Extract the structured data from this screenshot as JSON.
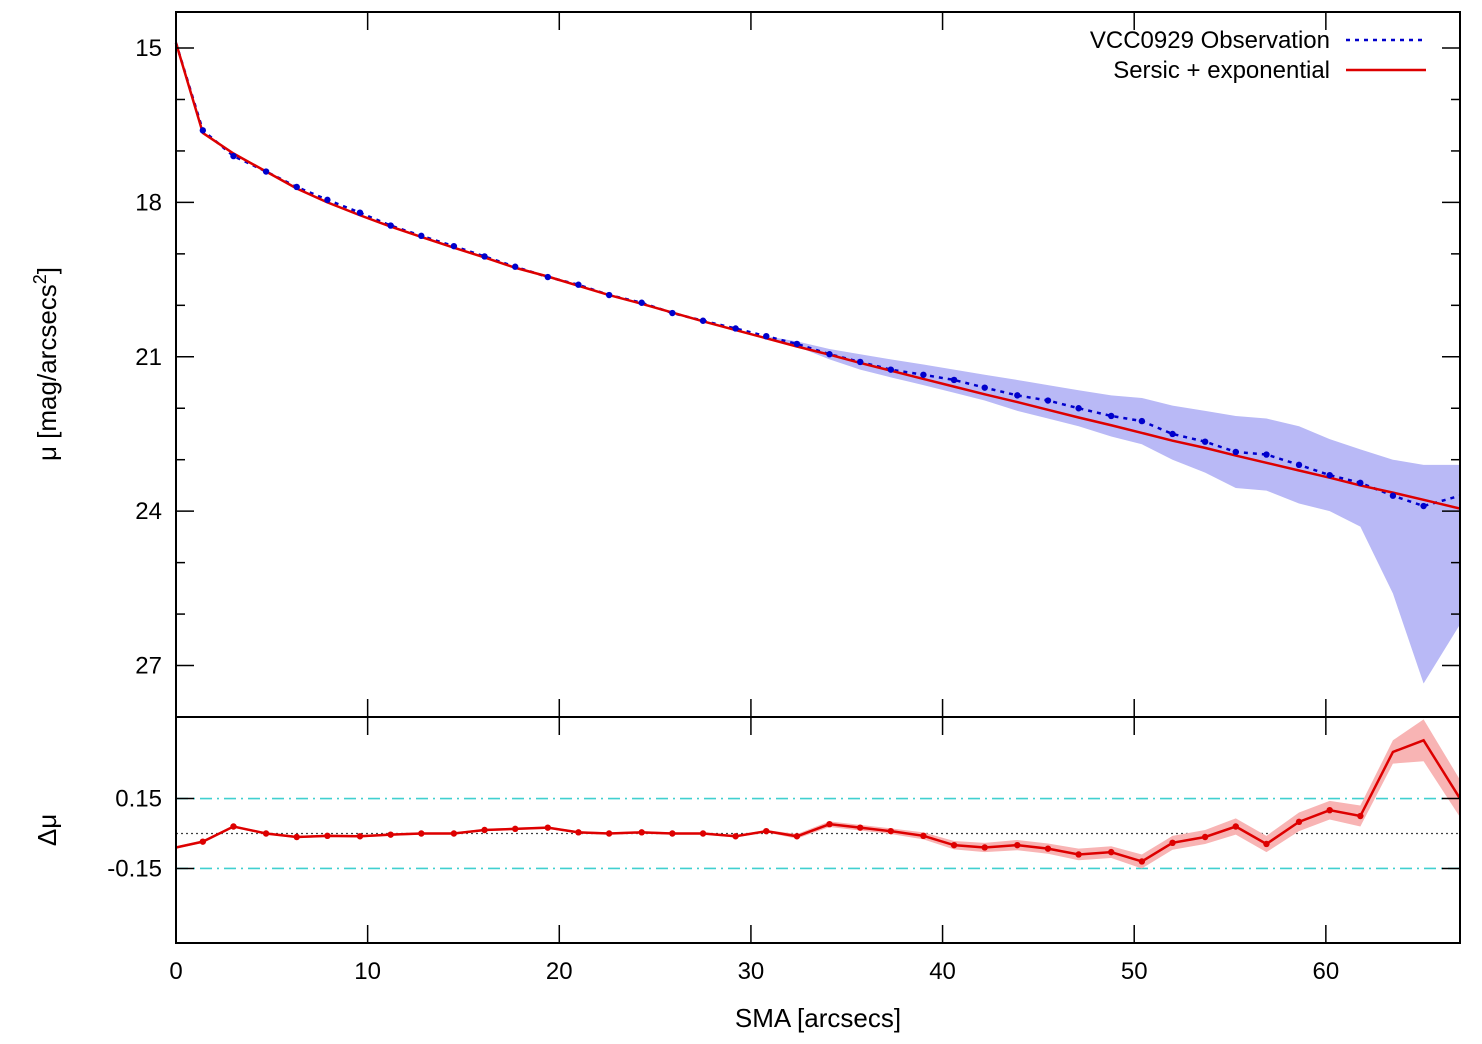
{
  "chart_data": [
    {
      "type": "line",
      "panel": "profile",
      "title": "",
      "xlabel": "",
      "ylabel": "μ [mag/arcsecs",
      "ylabel_sup": "2",
      "ylabel_tail": "]",
      "xlim": [
        0,
        67
      ],
      "ylim": [
        14.3,
        28
      ],
      "y_inverted": true,
      "yticks": [
        15,
        18,
        21,
        24,
        27
      ],
      "ytick_labels": [
        "15",
        "18",
        "21",
        "24",
        "27"
      ],
      "legend_position": "top-right",
      "series": [
        {
          "name": "VCC0929 Observation",
          "style": "dotted",
          "color": "#0000cc",
          "x": [
            0,
            1.4,
            3.0,
            4.7,
            6.3,
            7.9,
            9.6,
            11.2,
            12.8,
            14.5,
            16.1,
            17.7,
            19.4,
            21.0,
            22.6,
            24.3,
            25.9,
            27.5,
            29.2,
            30.8,
            32.4,
            34.1,
            35.7,
            37.3,
            39.0,
            40.6,
            42.2,
            43.9,
            45.5,
            47.1,
            48.8,
            50.4,
            52.0,
            53.7,
            55.3,
            56.9,
            58.6,
            60.2,
            61.8,
            63.5,
            65.1,
            67.0
          ],
          "y": [
            14.9,
            16.6,
            17.1,
            17.4,
            17.7,
            17.95,
            18.2,
            18.45,
            18.65,
            18.85,
            19.05,
            19.25,
            19.45,
            19.6,
            19.8,
            19.95,
            20.15,
            20.3,
            20.45,
            20.6,
            20.75,
            20.95,
            21.1,
            21.25,
            21.35,
            21.45,
            21.6,
            21.75,
            21.85,
            22.0,
            22.15,
            22.25,
            22.5,
            22.65,
            22.85,
            22.9,
            23.1,
            23.3,
            23.45,
            23.7,
            23.9,
            23.7
          ],
          "err_low": [
            14.9,
            16.6,
            17.1,
            17.4,
            17.7,
            17.95,
            18.2,
            18.45,
            18.65,
            18.85,
            19.05,
            19.25,
            19.45,
            19.6,
            19.8,
            19.95,
            20.15,
            20.3,
            20.45,
            20.6,
            20.7,
            20.85,
            20.95,
            21.05,
            21.15,
            21.25,
            21.35,
            21.45,
            21.55,
            21.65,
            21.75,
            21.8,
            21.95,
            22.05,
            22.15,
            22.2,
            22.35,
            22.6,
            22.8,
            23.0,
            23.1,
            23.1
          ],
          "err_high": [
            14.9,
            16.6,
            17.1,
            17.4,
            17.7,
            17.95,
            18.2,
            18.45,
            18.65,
            18.85,
            19.05,
            19.25,
            19.45,
            19.6,
            19.8,
            19.95,
            20.15,
            20.3,
            20.45,
            20.6,
            20.8,
            21.05,
            21.25,
            21.4,
            21.55,
            21.7,
            21.85,
            22.05,
            22.2,
            22.35,
            22.55,
            22.7,
            23.0,
            23.25,
            23.55,
            23.6,
            23.85,
            24.0,
            24.3,
            25.6,
            27.35,
            26.2
          ]
        },
        {
          "name": "Sersic + exponential",
          "style": "solid",
          "color": "#dd0000",
          "x": [
            0,
            1.4,
            3.0,
            4.7,
            6.3,
            7.9,
            9.6,
            11.2,
            12.8,
            14.5,
            16.1,
            17.7,
            19.4,
            21.0,
            22.6,
            24.3,
            25.9,
            27.5,
            29.2,
            30.8,
            32.4,
            34.1,
            35.7,
            37.3,
            39.0,
            40.6,
            42.2,
            43.9,
            45.5,
            47.1,
            48.8,
            50.4,
            52.0,
            53.7,
            55.3,
            56.9,
            58.6,
            60.2,
            61.8,
            63.5,
            65.1,
            67.0
          ],
          "y": [
            14.9,
            16.65,
            17.05,
            17.4,
            17.73,
            18.0,
            18.25,
            18.47,
            18.67,
            18.88,
            19.07,
            19.27,
            19.44,
            19.62,
            19.8,
            19.97,
            20.14,
            20.31,
            20.48,
            20.64,
            20.8,
            20.96,
            21.12,
            21.27,
            21.43,
            21.58,
            21.73,
            21.88,
            22.03,
            22.18,
            22.33,
            22.48,
            22.63,
            22.77,
            22.92,
            23.06,
            23.21,
            23.35,
            23.5,
            23.64,
            23.78,
            23.95
          ]
        }
      ]
    },
    {
      "type": "line",
      "panel": "residuals",
      "xlabel": "SMA [arcsecs]",
      "ylabel": "Δμ",
      "xlim": [
        0,
        67
      ],
      "ylim": [
        -0.47,
        0.5
      ],
      "xticks": [
        0,
        10,
        20,
        30,
        40,
        50,
        60
      ],
      "xtick_labels": [
        "0",
        "10",
        "20",
        "30",
        "40",
        "50",
        "60"
      ],
      "yticks": [
        0.15,
        -0.15
      ],
      "ytick_labels": [
        "0.15",
        "-0.15"
      ],
      "reference_lines": [
        {
          "y": 0.15,
          "style": "dash-dot",
          "color": "#40d0d0"
        },
        {
          "y": -0.15,
          "style": "dash-dot",
          "color": "#40d0d0"
        },
        {
          "y": 0,
          "style": "dotted",
          "color": "#404040"
        }
      ],
      "series": [
        {
          "name": "",
          "style": "solid-markers",
          "color": "#dd0000",
          "band_color": "#f8b4b4",
          "x": [
            0,
            1.4,
            3.0,
            4.7,
            6.3,
            7.9,
            9.6,
            11.2,
            12.8,
            14.5,
            16.1,
            17.7,
            19.4,
            21.0,
            22.6,
            24.3,
            25.9,
            27.5,
            29.2,
            30.8,
            32.4,
            34.1,
            35.7,
            37.3,
            39.0,
            40.6,
            42.2,
            43.9,
            45.5,
            47.1,
            48.8,
            50.4,
            52.0,
            53.7,
            55.3,
            56.9,
            58.6,
            60.2,
            61.8,
            63.5,
            65.1,
            67.0
          ],
          "y": [
            -0.06,
            -0.035,
            0.03,
            0.0,
            -0.015,
            -0.01,
            -0.012,
            -0.005,
            0.0,
            0.0,
            0.015,
            0.02,
            0.025,
            0.005,
            0.0,
            0.005,
            0.0,
            0.0,
            -0.012,
            0.01,
            -0.012,
            0.04,
            0.025,
            0.01,
            -0.01,
            -0.05,
            -0.06,
            -0.05,
            -0.065,
            -0.09,
            -0.08,
            -0.12,
            -0.04,
            -0.015,
            0.03,
            -0.045,
            0.05,
            0.1,
            0.075,
            0.35,
            0.4,
            0.15
          ],
          "err": [
            0.005,
            0.005,
            0.005,
            0.005,
            0.005,
            0.005,
            0.005,
            0.005,
            0.005,
            0.005,
            0.005,
            0.005,
            0.005,
            0.005,
            0.005,
            0.005,
            0.005,
            0.005,
            0.005,
            0.005,
            0.01,
            0.012,
            0.012,
            0.012,
            0.015,
            0.018,
            0.02,
            0.022,
            0.022,
            0.025,
            0.025,
            0.03,
            0.03,
            0.03,
            0.035,
            0.035,
            0.04,
            0.04,
            0.045,
            0.05,
            0.09,
            0.08
          ]
        }
      ]
    }
  ]
}
